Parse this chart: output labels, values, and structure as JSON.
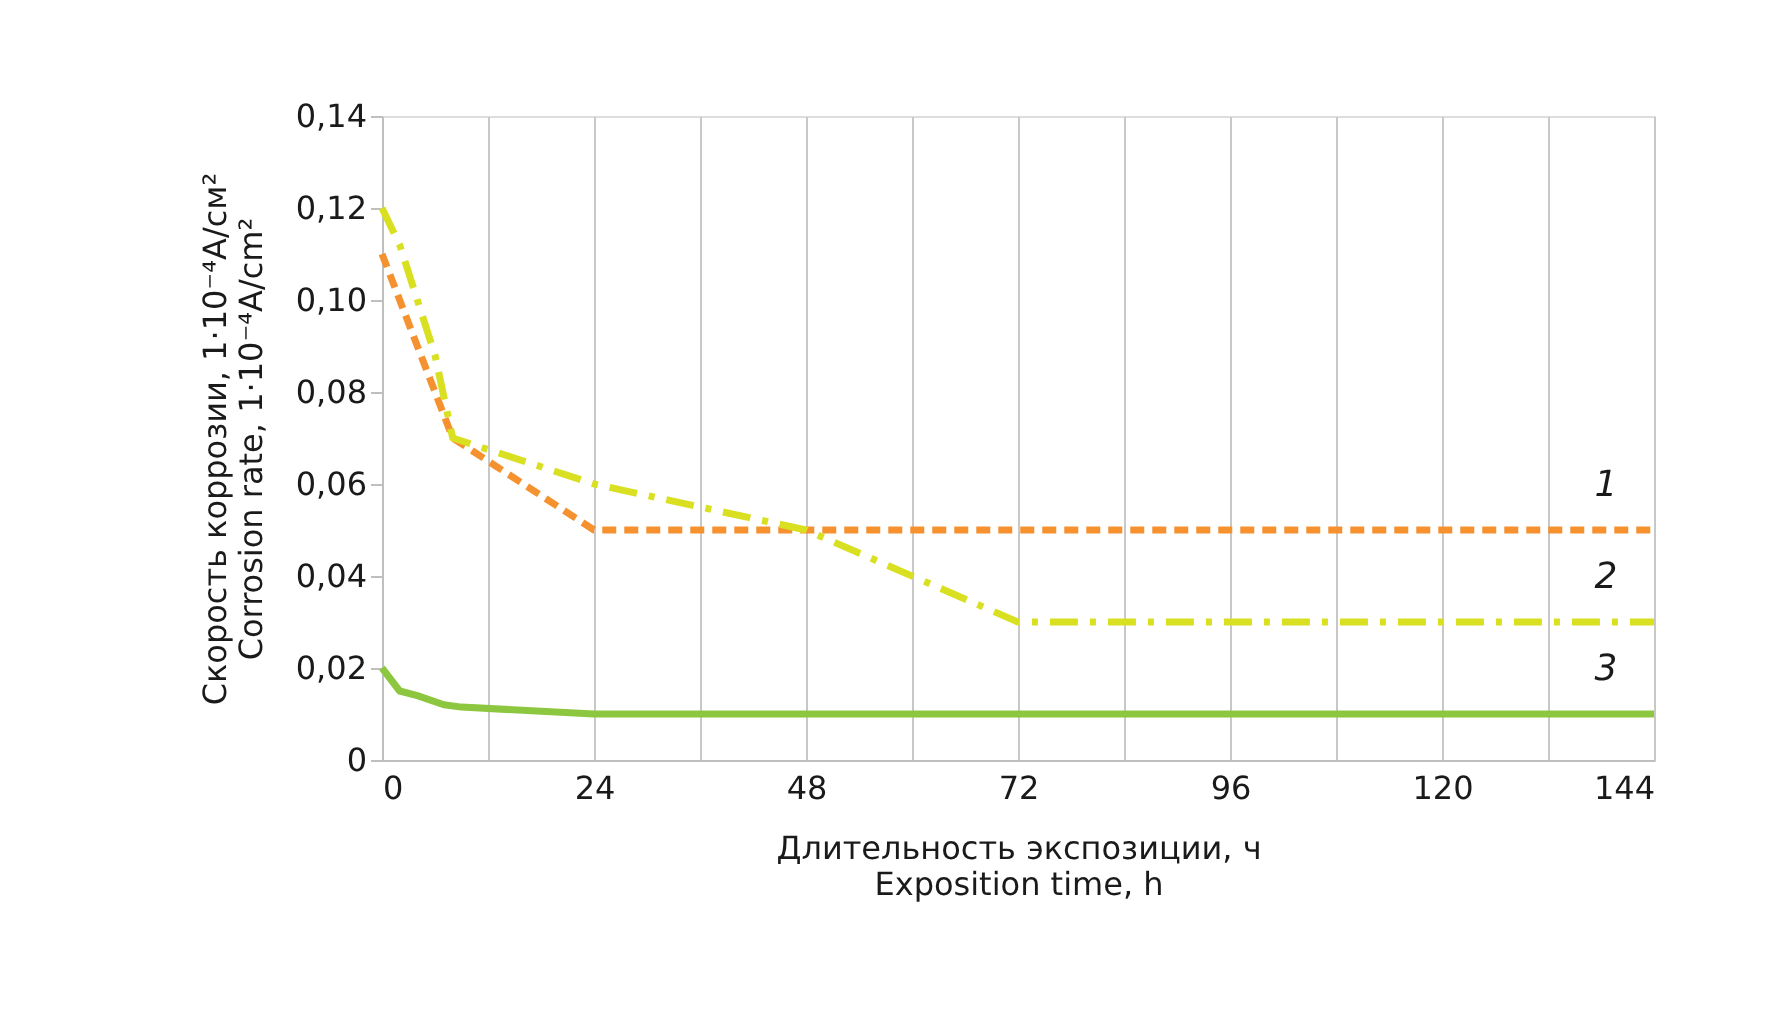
{
  "chart_data": {
    "type": "line",
    "xlabel": "Длительность экспозиции, ч\nExposition time, h",
    "ylabel": "Скорость коррозии, 1·10⁻⁴A/см²\nCorrosion rate, 1·10⁻⁴A/cm²",
    "series": [
      {
        "color": "#f5922f",
        "line_style": "dashed",
        "x": [
          0,
          8,
          24,
          144
        ],
        "values": [
          0.11,
          0.07,
          0.05,
          0.05
        ]
      },
      {
        "color": "#d9e021",
        "line_style": "dashdot",
        "x": [
          0,
          2,
          6,
          8,
          24,
          48,
          72,
          144
        ],
        "values": [
          0.12,
          0.112,
          0.088,
          0.07,
          0.06,
          0.05,
          0.03,
          0.03
        ]
      },
      {
        "color": "#8dc63f",
        "line_style": "solid",
        "x": [
          0,
          2,
          4,
          7,
          9,
          24,
          144
        ],
        "values": [
          0.02,
          0.015,
          0.014,
          0.012,
          0.0115,
          0.01,
          0.01
        ]
      }
    ],
    "annotations": [
      "1",
      "2",
      "3"
    ],
    "xlim": [
      0,
      144
    ],
    "xticks": [
      0,
      {
        "value": 12,
        "label": null
      },
      24,
      {
        "value": 36,
        "label": null
      },
      48,
      {
        "value": 60,
        "label": null
      },
      72,
      {
        "value": 84,
        "label": null
      },
      96,
      {
        "value": 108,
        "label": null
      },
      120,
      {
        "value": 132,
        "label": null
      },
      144
    ],
    "ylim": [
      0,
      0.14
    ],
    "yticks": [
      0,
      {
        "value": 0.02,
        "label": "0,02"
      },
      {
        "value": 0.04,
        "label": "0,04"
      },
      {
        "value": 0.06,
        "label": "0,06"
      },
      {
        "value": 0.08,
        "label": "0,08"
      },
      {
        "value": 0.1,
        "label": "0,10"
      },
      {
        "value": 0.12,
        "label": "0,12"
      },
      {
        "value": 0.14,
        "label": "0,14"
      }
    ],
    "grid": "x",
    "marker": "none"
  }
}
